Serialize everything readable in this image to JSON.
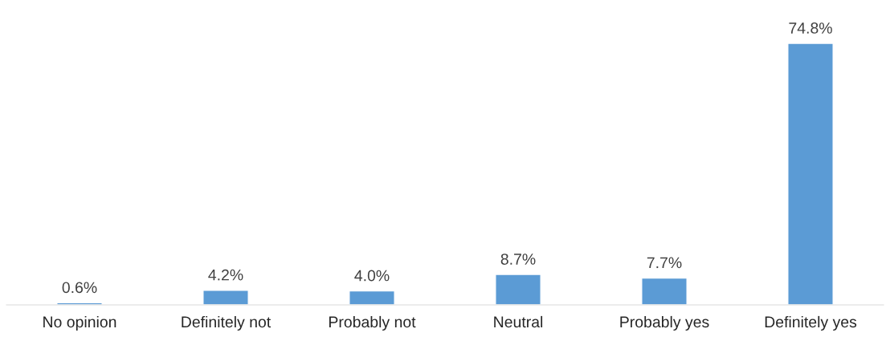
{
  "chart_data": {
    "type": "bar",
    "categories": [
      "No opinion",
      "Definitely not",
      "Probably not",
      "Neutral",
      "Probably yes",
      "Definitely yes"
    ],
    "values": [
      0.6,
      4.2,
      4.0,
      8.7,
      7.7,
      74.8
    ],
    "value_labels": [
      "0.6%",
      "4.2%",
      "4.0%",
      "8.7%",
      "7.7%",
      "74.8%"
    ],
    "color": "#5b9bd5",
    "grid": false,
    "legend": false
  }
}
